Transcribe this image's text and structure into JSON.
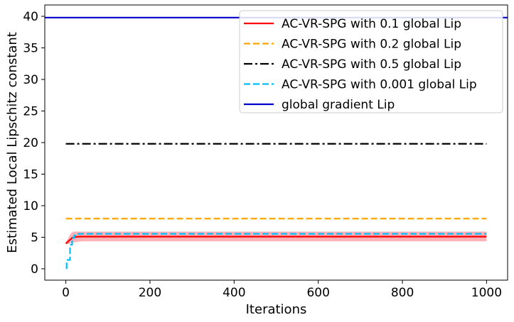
{
  "chart_data": {
    "type": "line",
    "title": "",
    "xlabel": "Iterations",
    "ylabel": "Estimated Local Lipschitz constant",
    "xlim": [
      -50,
      1050
    ],
    "ylim": [
      -1.8,
      41.8
    ],
    "xticks": [
      0,
      200,
      400,
      600,
      800,
      1000
    ],
    "yticks": [
      0,
      5,
      10,
      15,
      20,
      25,
      30,
      35,
      40
    ],
    "grid": false,
    "legend_position": "top-right",
    "series": [
      {
        "name": "AC-VR-SPG with 0.1 global Lip",
        "color": "#ff0000",
        "dash": "solid",
        "band": true,
        "band_color": "#ff9aa2",
        "x": [
          0,
          5,
          10,
          15,
          20,
          25,
          30,
          40,
          1000
        ],
        "y": [
          4.0,
          4.3,
          4.6,
          4.9,
          5.0,
          5.05,
          5.1,
          5.1,
          5.1
        ],
        "y_low": [
          3.9,
          3.9,
          4.0,
          4.1,
          4.2,
          4.25,
          4.3,
          4.35,
          4.35
        ],
        "y_high": [
          4.2,
          4.8,
          5.4,
          5.8,
          5.9,
          5.9,
          5.9,
          5.9,
          5.9
        ]
      },
      {
        "name": "AC-VR-SPG with 0.2 global Lip",
        "color": "#ffa500",
        "dash": "dashed",
        "x": [
          0,
          1000
        ],
        "y": [
          7.95,
          7.95
        ]
      },
      {
        "name": "AC-VR-SPG with 0.5 global Lip",
        "color": "#000000",
        "dash": "dashdot",
        "x": [
          0,
          1000
        ],
        "y": [
          19.8,
          19.8
        ]
      },
      {
        "name": "AC-VR-SPG with 0.001 global Lip",
        "color": "#00bfff",
        "dash": "dashed",
        "x": [
          0,
          2,
          2,
          10,
          10,
          15,
          15,
          20,
          20,
          25,
          25,
          30,
          30,
          1000
        ],
        "y": [
          0.1,
          0.1,
          1.4,
          1.4,
          3.8,
          3.8,
          4.9,
          4.9,
          5.3,
          5.3,
          5.5,
          5.5,
          5.55,
          5.55
        ]
      },
      {
        "name": "global gradient Lip",
        "color": "#0000cd",
        "dash": "solid",
        "full_width": true,
        "x": [
          -50,
          1050
        ],
        "y": [
          39.8,
          39.8
        ]
      }
    ]
  }
}
